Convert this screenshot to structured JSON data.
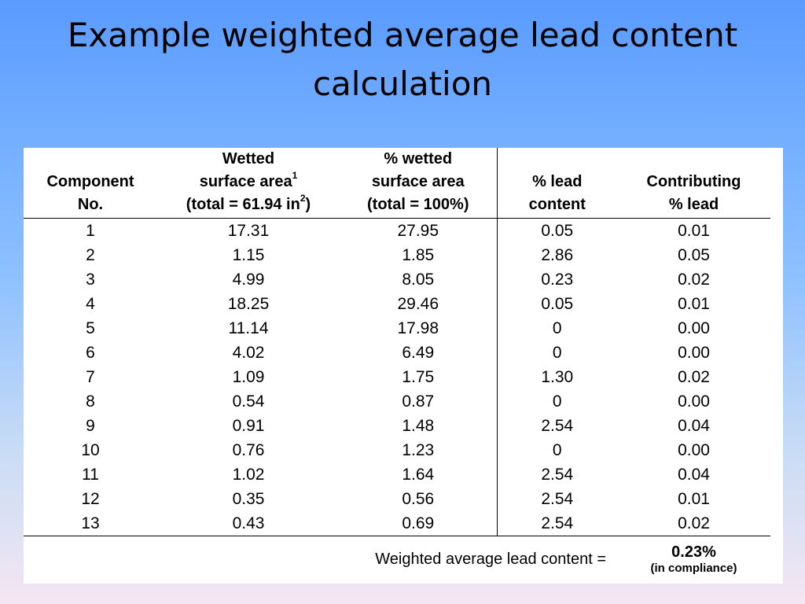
{
  "header": {
    "title": "Example weighted average lead content calculation"
  },
  "table": {
    "columns": [
      {
        "lines": [
          "Component",
          "No."
        ]
      },
      {
        "lines": [
          "Wetted",
          "surface area",
          "(total = 61.94 in",
          ")"
        ],
        "sups": [
          "1",
          "2"
        ]
      },
      {
        "lines": [
          "% wetted",
          "surface area",
          "(total = 100%)"
        ]
      },
      {
        "lines": [
          "% lead",
          "content"
        ]
      },
      {
        "lines": [
          "Contributing",
          "% lead"
        ]
      }
    ],
    "rows": [
      [
        "1",
        "17.31",
        "27.95",
        "0.05",
        "0.01"
      ],
      [
        "2",
        "1.15",
        "1.85",
        "2.86",
        "0.05"
      ],
      [
        "3",
        "4.99",
        "8.05",
        "0.23",
        "0.02"
      ],
      [
        "4",
        "18.25",
        "29.46",
        "0.05",
        "0.01"
      ],
      [
        "5",
        "11.14",
        "17.98",
        "0",
        "0.00"
      ],
      [
        "6",
        "4.02",
        "6.49",
        "0",
        "0.00"
      ],
      [
        "7",
        "1.09",
        "1.75",
        "1.30",
        "0.02"
      ],
      [
        "8",
        "0.54",
        "0.87",
        "0",
        "0.00"
      ],
      [
        "9",
        "0.91",
        "1.48",
        "2.54",
        "0.04"
      ],
      [
        "10",
        "0.76",
        "1.23",
        "0",
        "0.00"
      ],
      [
        "11",
        "1.02",
        "1.64",
        "2.54",
        "0.04"
      ],
      [
        "12",
        "0.35",
        "0.56",
        "2.54",
        "0.01"
      ],
      [
        "13",
        "0.43",
        "0.69",
        "2.54",
        "0.02"
      ]
    ],
    "footer": {
      "label": "Weighted average lead content =",
      "value": "0.23%",
      "note": "(in compliance)"
    }
  }
}
